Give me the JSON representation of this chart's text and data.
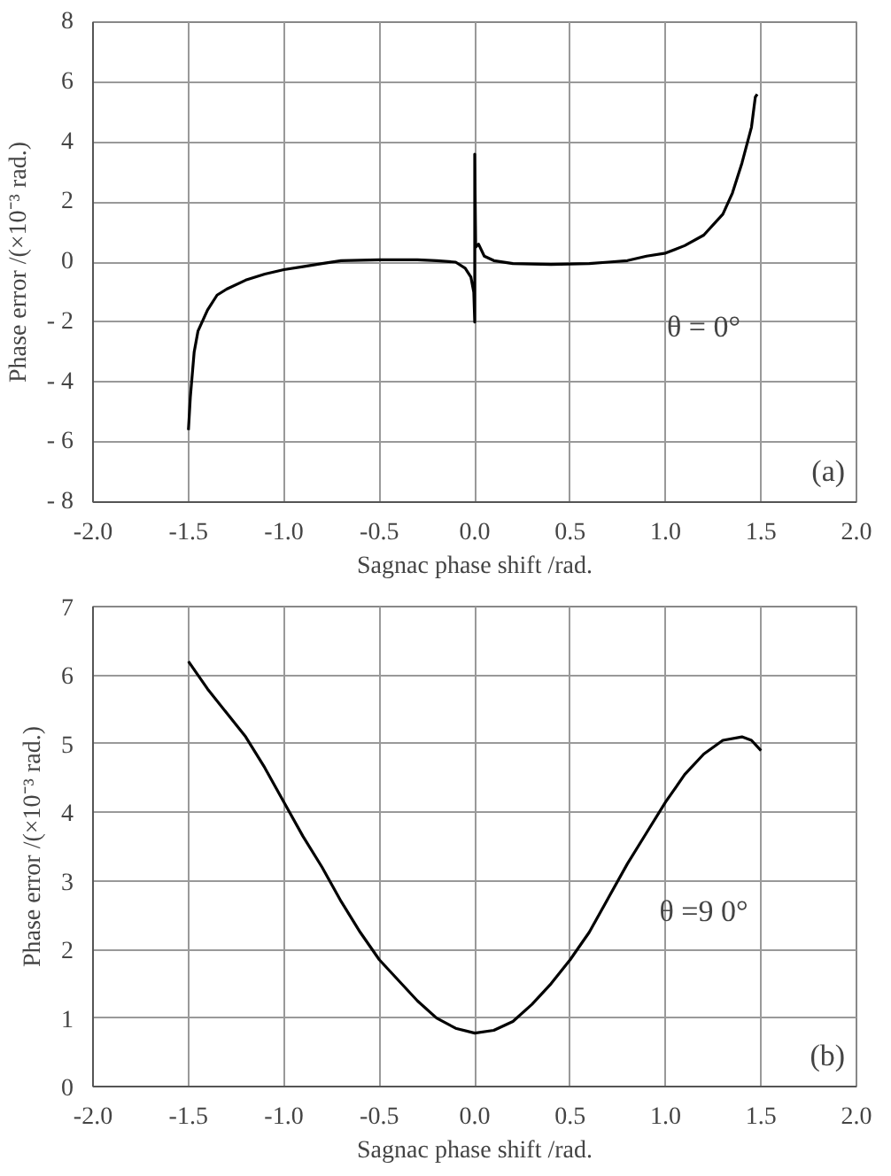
{
  "chart_data": [
    {
      "type": "line",
      "xlabel": "Sagnac phase shift /rad.",
      "ylabel": "Phase error /(×10⁻³ rad.)",
      "annotations": [
        "θ = 0°",
        "(a)"
      ],
      "xlim": [
        -2,
        2
      ],
      "xticks": [
        {
          "value": -2,
          "label": "-2.0"
        },
        {
          "value": -1.5,
          "label": "-1.5"
        },
        {
          "value": -1,
          "label": "-1.0"
        },
        {
          "value": -0.5,
          "label": "-0.5"
        },
        {
          "value": 0,
          "label": "0.0"
        },
        {
          "value": 0.5,
          "label": "0.5"
        },
        {
          "value": 1,
          "label": "1.0"
        },
        {
          "value": 1.5,
          "label": "1.5"
        },
        {
          "value": 2,
          "label": "2.0"
        }
      ],
      "ylim": [
        -8,
        8
      ],
      "yticks": [
        {
          "value": -8,
          "label": "- 8"
        },
        {
          "value": -6,
          "label": "- 6"
        },
        {
          "value": -4,
          "label": "- 4"
        },
        {
          "value": -2,
          "label": "- 2"
        },
        0,
        2,
        4,
        6,
        8
      ],
      "grid": true,
      "marker": "none",
      "line_style": "solid",
      "series": [
        {
          "color": "#000000",
          "x": [
            -1.5,
            -1.49,
            -1.47,
            -1.45,
            -1.4,
            -1.35,
            -1.3,
            -1.2,
            -1.1,
            -1.0,
            -0.9,
            -0.8,
            -0.7,
            -0.5,
            -0.3,
            -0.2,
            -0.1,
            -0.05,
            -0.02,
            -0.005,
            0,
            0,
            0.005,
            0.02,
            0.05,
            0.1,
            0.2,
            0.4,
            0.6,
            0.7,
            0.8,
            0.9,
            1.0,
            1.1,
            1.2,
            1.3,
            1.35,
            1.4,
            1.45,
            1.47,
            1.48
          ],
          "values": [
            -5.6,
            -4.5,
            -3.0,
            -2.3,
            -1.6,
            -1.1,
            -0.9,
            -0.6,
            -0.4,
            -0.25,
            -0.15,
            -0.05,
            0.05,
            0.08,
            0.08,
            0.05,
            0,
            -0.2,
            -0.5,
            -1.0,
            -2.0,
            3.6,
            0.5,
            0.6,
            0.2,
            0.05,
            -0.05,
            -0.08,
            -0.05,
            0,
            0.05,
            0.2,
            0.3,
            0.55,
            0.9,
            1.6,
            2.3,
            3.3,
            4.5,
            5.5,
            5.6
          ]
        }
      ]
    },
    {
      "type": "line",
      "xlabel": "Sagnac phase shift /rad.",
      "ylabel": "Phase error /(×10⁻³ rad.)",
      "annotations": [
        "θ =9 0°",
        "(b)"
      ],
      "xlim": [
        -2,
        2
      ],
      "xticks": [
        {
          "value": -2,
          "label": "-2.0"
        },
        {
          "value": -1.5,
          "label": "-1.5"
        },
        {
          "value": -1,
          "label": "-1.0"
        },
        {
          "value": -0.5,
          "label": "-0.5"
        },
        {
          "value": 0,
          "label": "0.0"
        },
        {
          "value": 0.5,
          "label": "0.5"
        },
        {
          "value": 1,
          "label": "1.0"
        },
        {
          "value": 1.5,
          "label": "1.5"
        },
        {
          "value": 2,
          "label": "2.0"
        }
      ],
      "ylim": [
        0,
        7
      ],
      "yticks": [
        0,
        1,
        2,
        3,
        4,
        5,
        6,
        7
      ],
      "grid": true,
      "marker": "none",
      "line_style": "solid",
      "series": [
        {
          "color": "#000000",
          "x": [
            -1.5,
            -1.45,
            -1.4,
            -1.3,
            -1.2,
            -1.1,
            -1.0,
            -0.9,
            -0.8,
            -0.7,
            -0.6,
            -0.5,
            -0.4,
            -0.3,
            -0.2,
            -0.1,
            0,
            0.1,
            0.2,
            0.3,
            0.4,
            0.5,
            0.6,
            0.7,
            0.8,
            0.9,
            1.0,
            1.1,
            1.2,
            1.3,
            1.4,
            1.45,
            1.5
          ],
          "values": [
            6.2,
            6.0,
            5.8,
            5.45,
            5.1,
            4.65,
            4.15,
            3.65,
            3.2,
            2.7,
            2.25,
            1.85,
            1.55,
            1.25,
            1.0,
            0.85,
            0.78,
            0.82,
            0.95,
            1.2,
            1.5,
            1.85,
            2.25,
            2.75,
            3.25,
            3.7,
            4.15,
            4.55,
            4.85,
            5.05,
            5.1,
            5.05,
            4.9
          ]
        }
      ]
    }
  ]
}
